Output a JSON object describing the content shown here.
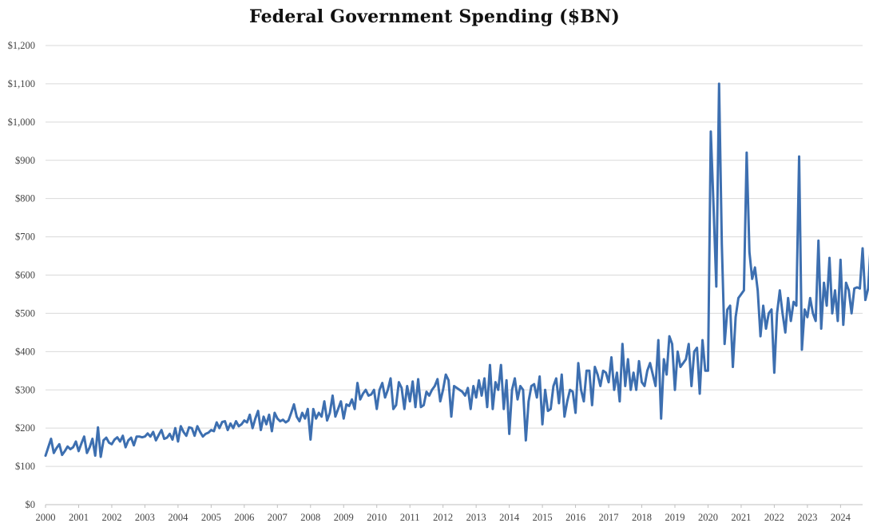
{
  "chart_data": {
    "type": "line",
    "title": "Federal Government Spending ($BN)",
    "xlabel": "",
    "ylabel": "",
    "ylim": [
      0,
      1200
    ],
    "xlim": [
      "2000-01",
      "2024-08"
    ],
    "grid": true,
    "legend": "none",
    "y_ticks": [
      0,
      100,
      200,
      300,
      400,
      500,
      600,
      700,
      800,
      900,
      1000,
      1100,
      1200
    ],
    "y_tick_labels": [
      "$0",
      "$100",
      "$200",
      "$300",
      "$400",
      "$500",
      "$600",
      "$700",
      "$800",
      "$900",
      "$1,000",
      "$1,100",
      "$1,200"
    ],
    "x_ticks": [
      "2000",
      "2001",
      "2002",
      "2003",
      "2004",
      "2005",
      "2006",
      "2007",
      "2008",
      "2009",
      "2010",
      "2011",
      "2012",
      "2013",
      "2014",
      "2015",
      "2016",
      "2017",
      "2018",
      "2019",
      "2020",
      "2021",
      "2022",
      "2023",
      "2024"
    ],
    "line_color": "#3d6fb0",
    "series": [
      {
        "x_start": "2000-01",
        "frequency": "monthly",
        "values": [
          128,
          150,
          172,
          135,
          148,
          158,
          130,
          140,
          152,
          145,
          150,
          165,
          140,
          160,
          178,
          135,
          150,
          172,
          128,
          202,
          125,
          168,
          175,
          162,
          158,
          170,
          176,
          165,
          180,
          150,
          168,
          175,
          155,
          178,
          178,
          176,
          178,
          186,
          178,
          190,
          168,
          182,
          195,
          172,
          175,
          185,
          170,
          200,
          165,
          205,
          190,
          180,
          202,
          200,
          180,
          205,
          190,
          178,
          185,
          188,
          195,
          192,
          215,
          200,
          216,
          218,
          195,
          212,
          200,
          218,
          205,
          210,
          220,
          215,
          235,
          200,
          225,
          245,
          195,
          230,
          210,
          235,
          192,
          240,
          225,
          218,
          222,
          215,
          220,
          240,
          262,
          230,
          218,
          240,
          225,
          250,
          170,
          250,
          225,
          240,
          230,
          270,
          220,
          240,
          285,
          230,
          250,
          270,
          225,
          262,
          258,
          275,
          250,
          318,
          275,
          290,
          300,
          285,
          288,
          300,
          250,
          300,
          318,
          280,
          300,
          330,
          250,
          260,
          320,
          305,
          250,
          310,
          270,
          322,
          255,
          328,
          255,
          260,
          295,
          285,
          300,
          310,
          328,
          270,
          300,
          340,
          325,
          230,
          310,
          305,
          300,
          295,
          285,
          305,
          250,
          310,
          280,
          325,
          285,
          330,
          255,
          365,
          250,
          320,
          300,
          365,
          250,
          325,
          185,
          300,
          330,
          275,
          310,
          300,
          168,
          270,
          310,
          315,
          280,
          335,
          210,
          300,
          245,
          250,
          310,
          330,
          265,
          340,
          230,
          270,
          300,
          295,
          240,
          370,
          300,
          270,
          350,
          350,
          260,
          360,
          340,
          310,
          350,
          345,
          320,
          385,
          300,
          345,
          270,
          420,
          310,
          380,
          300,
          345,
          300,
          375,
          320,
          310,
          350,
          370,
          340,
          310,
          430,
          225,
          380,
          340,
          440,
          420,
          300,
          400,
          360,
          370,
          380,
          420,
          310,
          400,
          410,
          290,
          430,
          350,
          350,
          975,
          780,
          570,
          1100,
          680,
          420,
          510,
          520,
          360,
          490,
          540,
          550,
          560,
          920,
          660,
          590,
          620,
          560,
          440,
          520,
          460,
          500,
          510,
          345,
          500,
          560,
          500,
          450,
          540,
          480,
          530,
          520,
          910,
          405,
          510,
          490,
          540,
          500,
          480,
          690,
          460,
          580,
          520,
          645,
          500,
          560,
          480,
          640,
          470,
          580,
          560,
          500,
          565,
          568,
          565,
          670,
          535,
          565,
          685
        ]
      }
    ]
  }
}
